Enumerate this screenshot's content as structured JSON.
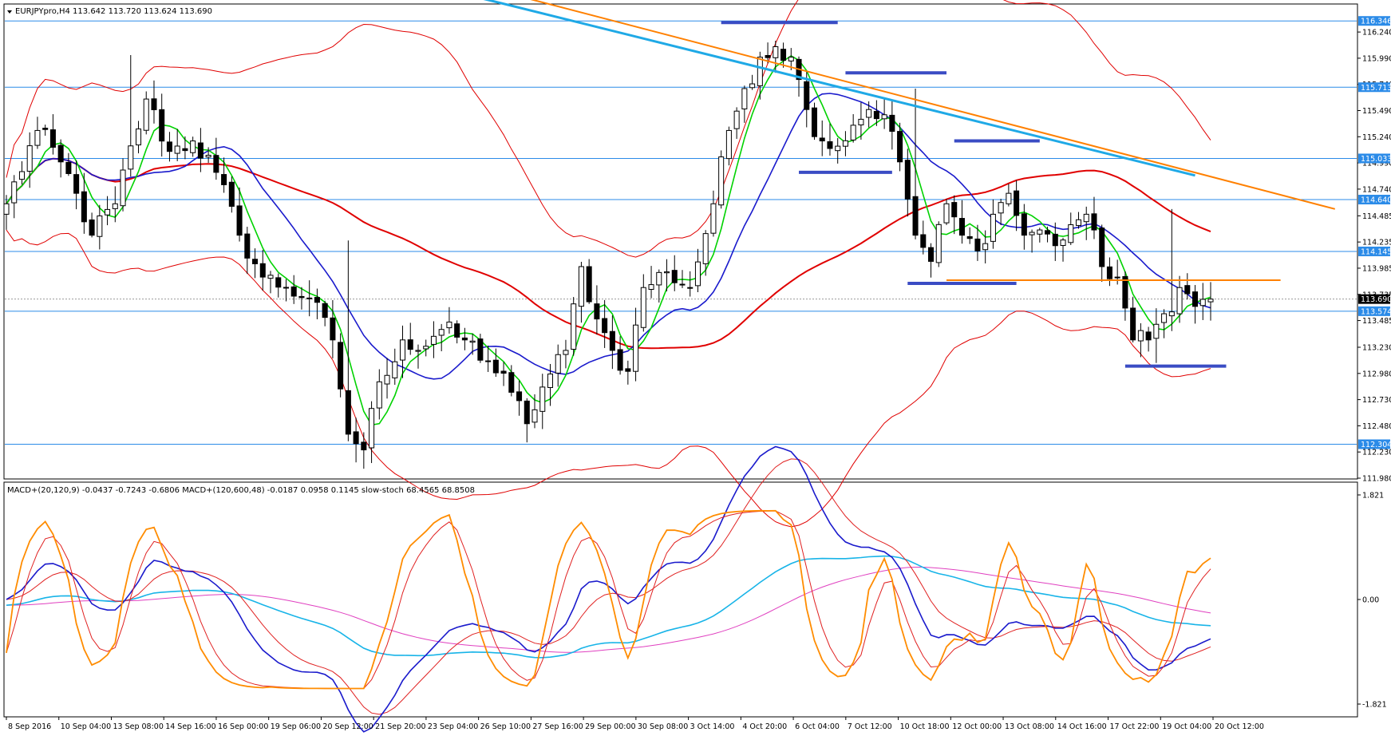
{
  "chart_data": [
    {
      "type": "candlestick",
      "title": "EURJPYpro,H4  113.642 113.720 113.624 113.690",
      "ylim": [
        111.98,
        116.5
      ],
      "y_ticks": [
        "116.240",
        "115.990",
        "115.740",
        "115.490",
        "115.240",
        "114.990",
        "114.740",
        "114.485",
        "114.235",
        "113.985",
        "113.735",
        "113.485",
        "113.230",
        "112.980",
        "112.730",
        "112.480",
        "112.230",
        "111.980"
      ],
      "price_badges": [
        {
          "value": 116.346,
          "label": "116.346"
        },
        {
          "value": 115.713,
          "label": "115.713"
        },
        {
          "value": 115.033,
          "label": "115.033"
        },
        {
          "value": 114.64,
          "label": "114.640"
        },
        {
          "value": 114.145,
          "label": "114.145"
        },
        {
          "value": 113.574,
          "label": "113.574"
        },
        {
          "value": 112.304,
          "label": "112.304"
        }
      ],
      "current_price": {
        "value": 113.69,
        "label": "113.690"
      },
      "x_labels": [
        "8 Sep 2016",
        "10 Sep 04:00",
        "13 Sep 08:00",
        "14 Sep 16:00",
        "16 Sep 00:00",
        "19 Sep 06:00",
        "20 Sep 12:00",
        "21 Sep 20:00",
        "23 Sep 04:00",
        "26 Sep 10:00",
        "27 Sep 16:00",
        "29 Sep 00:00",
        "30 Sep 08:00",
        "3 Oct 14:00",
        "4 Oct 20:00",
        "6 Oct 04:00",
        "7 Oct 12:00",
        "10 Oct 18:00",
        "12 Oct 00:00",
        "13 Oct 08:00",
        "14 Oct 16:00",
        "17 Oct 22:00",
        "19 Oct 04:00",
        "20 Oct 12:00"
      ],
      "anchors": [
        {
          "i": 0,
          "v": 114.6
        },
        {
          "i": 4,
          "v": 115.3
        },
        {
          "i": 7,
          "v": 115.0
        },
        {
          "i": 9,
          "v": 114.7
        },
        {
          "i": 11,
          "v": 114.3
        },
        {
          "i": 14,
          "v": 114.6
        },
        {
          "i": 18,
          "v": 115.6
        },
        {
          "i": 21,
          "v": 115.1
        },
        {
          "i": 24,
          "v": 115.2
        },
        {
          "i": 27,
          "v": 114.9
        },
        {
          "i": 30,
          "v": 114.3
        },
        {
          "i": 33,
          "v": 113.9
        },
        {
          "i": 36,
          "v": 113.8
        },
        {
          "i": 39,
          "v": 113.7
        },
        {
          "i": 42,
          "v": 113.3
        },
        {
          "i": 44,
          "v": 112.4
        },
        {
          "i": 46,
          "v": 112.25
        },
        {
          "i": 48,
          "v": 112.9
        },
        {
          "i": 51,
          "v": 113.3
        },
        {
          "i": 53,
          "v": 113.2
        },
        {
          "i": 56,
          "v": 113.4
        },
        {
          "i": 59,
          "v": 113.3
        },
        {
          "i": 62,
          "v": 113.1
        },
        {
          "i": 65,
          "v": 112.8
        },
        {
          "i": 67,
          "v": 112.5
        },
        {
          "i": 69,
          "v": 112.85
        },
        {
          "i": 72,
          "v": 113.2
        },
        {
          "i": 74,
          "v": 114.0
        },
        {
          "i": 76,
          "v": 113.5
        },
        {
          "i": 78,
          "v": 113.2
        },
        {
          "i": 80,
          "v": 113.0
        },
        {
          "i": 82,
          "v": 113.8
        },
        {
          "i": 85,
          "v": 113.95
        },
        {
          "i": 88,
          "v": 113.8
        },
        {
          "i": 91,
          "v": 114.6
        },
        {
          "i": 93,
          "v": 115.3
        },
        {
          "i": 95,
          "v": 115.7
        },
        {
          "i": 97,
          "v": 116.0
        },
        {
          "i": 99,
          "v": 116.1
        },
        {
          "i": 101,
          "v": 116.0
        },
        {
          "i": 103,
          "v": 115.5
        },
        {
          "i": 105,
          "v": 115.2
        },
        {
          "i": 107,
          "v": 115.15
        },
        {
          "i": 109,
          "v": 115.35
        },
        {
          "i": 111,
          "v": 115.5
        },
        {
          "i": 113,
          "v": 115.45
        },
        {
          "i": 115,
          "v": 115.0
        },
        {
          "i": 117,
          "v": 114.3
        },
        {
          "i": 119,
          "v": 114.05
        },
        {
          "i": 121,
          "v": 114.6
        },
        {
          "i": 123,
          "v": 114.3
        },
        {
          "i": 125,
          "v": 114.15
        },
        {
          "i": 127,
          "v": 114.5
        },
        {
          "i": 129,
          "v": 114.7
        },
        {
          "i": 131,
          "v": 114.3
        },
        {
          "i": 133,
          "v": 114.35
        },
        {
          "i": 135,
          "v": 114.2
        },
        {
          "i": 137,
          "v": 114.4
        },
        {
          "i": 139,
          "v": 114.5
        },
        {
          "i": 141,
          "v": 114.0
        },
        {
          "i": 143,
          "v": 113.9
        },
        {
          "i": 145,
          "v": 113.3
        },
        {
          "i": 147,
          "v": 113.3
        },
        {
          "i": 149,
          "v": 113.55
        },
        {
          "i": 151,
          "v": 113.8
        },
        {
          "i": 153,
          "v": 113.62
        },
        {
          "i": 155,
          "v": 113.69
        }
      ],
      "bar_count": 156,
      "trendlines": [
        {
          "name": "downtrend-orange",
          "color": "#ff8000",
          "from": [
            64,
            116.62
          ],
          "to": [
            171,
            114.55
          ]
        },
        {
          "name": "downtrend-cyan",
          "color": "#1fa9e6",
          "from": [
            58,
            116.62
          ],
          "to": [
            153,
            114.87
          ]
        },
        {
          "name": "resistance-orange",
          "color": "#ff8000",
          "from": [
            121,
            113.87
          ],
          "to": [
            164,
            113.87
          ]
        }
      ],
      "levels": [
        {
          "name": "level-1",
          "color": "#3a4cc4",
          "from": 92,
          "to": 107,
          "value": 116.33
        },
        {
          "name": "level-2",
          "color": "#3a4cc4",
          "from": 108,
          "to": 121,
          "value": 115.85
        },
        {
          "name": "level-3",
          "color": "#3a4cc4",
          "from": 122,
          "to": 133,
          "value": 115.2
        },
        {
          "name": "level-4",
          "color": "#3a4cc4",
          "from": 102,
          "to": 114,
          "value": 114.9
        },
        {
          "name": "level-5",
          "color": "#3a4cc4",
          "from": 116,
          "to": 130,
          "value": 113.84
        },
        {
          "name": "level-6",
          "color": "#3a4cc4",
          "from": 144,
          "to": 157,
          "value": 113.05
        }
      ]
    },
    {
      "type": "line",
      "title": "MACD+(20,120,9) -0.0437 -0.7243 -0.6806  MACD+(120,600,48) -0.0187 0.0958 0.1145  slow-stoch 68.4565 68.8508",
      "ylim": [
        -1.821,
        1.821
      ],
      "y_ticks": [
        "1.821",
        "0.00",
        "-1.821"
      ]
    }
  ],
  "colors": {
    "grid_line": "#2b8be8",
    "bull": "#ffffff",
    "bear": "#000000",
    "ma_green": "#00d200",
    "ma_blue": "#1a1acc",
    "ma_red": "#e00000",
    "stoch_orange": "#ff8c00",
    "stoch_red": "#e02020",
    "macd_cyan": "#18b4e8",
    "macd_magenta": "#e040c0"
  }
}
